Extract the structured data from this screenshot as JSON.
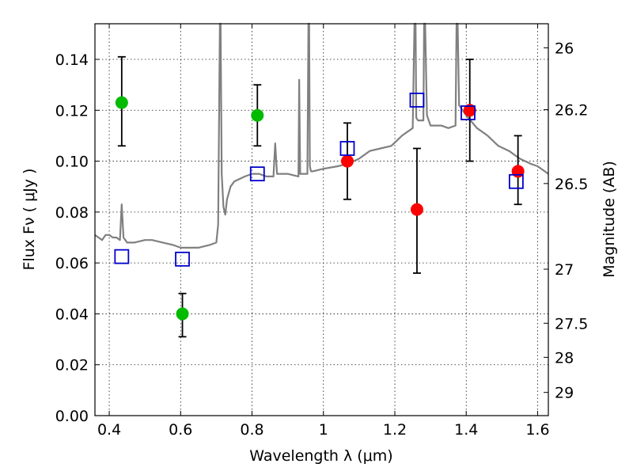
{
  "chart_data": {
    "type": "scatter",
    "xlabel": "Wavelength  λ (μm)",
    "ylabel": "Flux  Fν  ( μJy )",
    "ylabel_right": "Magnitude (AB)",
    "xlim": [
      0.36,
      1.63
    ],
    "ylim": [
      0.0,
      0.154
    ],
    "grid": true,
    "x_ticks": [
      0.4,
      0.6,
      0.8,
      1.0,
      1.2,
      1.4,
      1.6
    ],
    "x_tick_labels": [
      "0.4",
      "0.6",
      "0.8",
      "1",
      "1.2",
      "1.4",
      "1.6"
    ],
    "y_ticks": [
      0.0,
      0.02,
      0.04,
      0.06,
      0.08,
      0.1,
      0.12,
      0.14
    ],
    "y_tick_labels": [
      "0.00",
      "0.02",
      "0.04",
      "0.06",
      "0.08",
      "0.10",
      "0.12",
      "0.14"
    ],
    "right_ticks": [
      {
        "label": "26",
        "mag": 26.0
      },
      {
        "label": "26.2",
        "mag": 26.2
      },
      {
        "label": "26.5",
        "mag": 26.5
      },
      {
        "label": "27",
        "mag": 27.0
      },
      {
        "label": "27.5",
        "mag": 27.5
      },
      {
        "label": "28",
        "mag": 28.0
      },
      {
        "label": "29",
        "mag": 29.0
      }
    ],
    "colors": {
      "spectrum": "#808080",
      "green_points": "#00bb00",
      "red_points": "#ff0000",
      "model_squares": "#0000cc",
      "error_bars": "#000000"
    },
    "series": [
      {
        "kind": "spectrum",
        "x": [
          0.36,
          0.37,
          0.38,
          0.39,
          0.4,
          0.41,
          0.42,
          0.43,
          0.435,
          0.44,
          0.445,
          0.45,
          0.47,
          0.5,
          0.52,
          0.55,
          0.58,
          0.6,
          0.63,
          0.65,
          0.68,
          0.7,
          0.705,
          0.71,
          0.712,
          0.715,
          0.72,
          0.725,
          0.73,
          0.74,
          0.75,
          0.78,
          0.8,
          0.82,
          0.84,
          0.86,
          0.865,
          0.87,
          0.9,
          0.93,
          0.932,
          0.935,
          0.94,
          0.955,
          0.958,
          0.96,
          0.962,
          0.965,
          0.97,
          1.0,
          1.04,
          1.07,
          1.1,
          1.13,
          1.16,
          1.19,
          1.22,
          1.25,
          1.255,
          1.258,
          1.26,
          1.265,
          1.27,
          1.28,
          1.282,
          1.285,
          1.29,
          1.3,
          1.33,
          1.35,
          1.37,
          1.373,
          1.376,
          1.38,
          1.4,
          1.43,
          1.46,
          1.49,
          1.52,
          1.55,
          1.58,
          1.6,
          1.63
        ],
        "y": [
          0.071,
          0.07,
          0.069,
          0.071,
          0.071,
          0.07,
          0.07,
          0.069,
          0.083,
          0.07,
          0.069,
          0.068,
          0.068,
          0.069,
          0.069,
          0.068,
          0.067,
          0.066,
          0.066,
          0.066,
          0.067,
          0.068,
          0.075,
          0.154,
          0.154,
          0.095,
          0.082,
          0.079,
          0.085,
          0.09,
          0.092,
          0.094,
          0.095,
          0.095,
          0.094,
          0.094,
          0.107,
          0.095,
          0.095,
          0.094,
          0.132,
          0.095,
          0.095,
          0.095,
          0.154,
          0.154,
          0.098,
          0.096,
          0.096,
          0.097,
          0.098,
          0.099,
          0.101,
          0.104,
          0.105,
          0.106,
          0.11,
          0.113,
          0.154,
          0.154,
          0.117,
          0.116,
          0.116,
          0.116,
          0.154,
          0.154,
          0.118,
          0.114,
          0.114,
          0.113,
          0.114,
          0.154,
          0.154,
          0.122,
          0.118,
          0.113,
          0.11,
          0.106,
          0.104,
          0.101,
          0.099,
          0.098,
          0.095
        ]
      },
      {
        "kind": "green-points",
        "x": [
          0.435,
          0.605,
          0.815
        ],
        "y": [
          0.123,
          0.04,
          0.118
        ],
        "yerr_low": [
          0.106,
          0.031,
          0.106
        ],
        "yerr_high": [
          0.141,
          0.048,
          0.13
        ]
      },
      {
        "kind": "red-points",
        "x": [
          1.067,
          1.262,
          1.41,
          1.545
        ],
        "y": [
          0.1,
          0.081,
          0.12,
          0.096
        ],
        "yerr_low": [
          0.085,
          0.056,
          0.1,
          0.083
        ],
        "yerr_high": [
          0.115,
          0.105,
          0.14,
          0.11
        ]
      },
      {
        "kind": "model-squares",
        "x": [
          0.435,
          0.605,
          0.815,
          1.067,
          1.262,
          1.405,
          1.54
        ],
        "y": [
          0.0625,
          0.0615,
          0.095,
          0.105,
          0.124,
          0.119,
          0.092
        ]
      }
    ]
  }
}
